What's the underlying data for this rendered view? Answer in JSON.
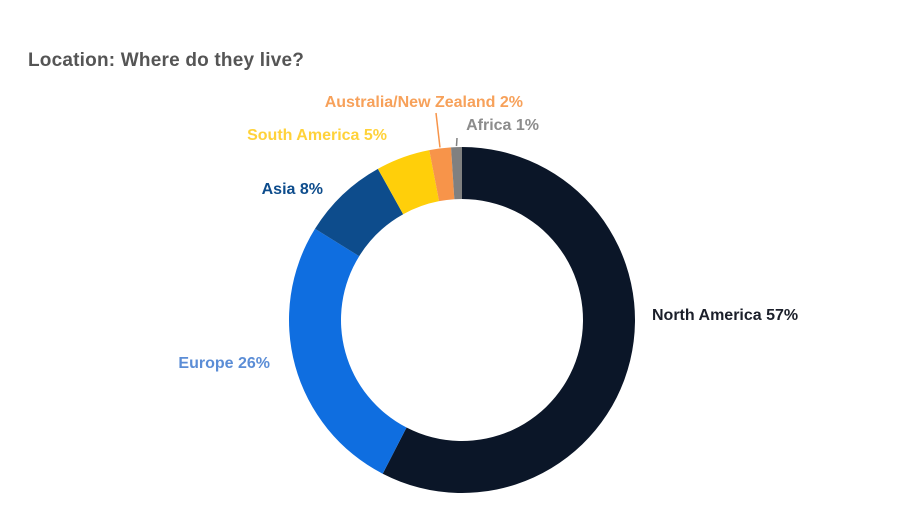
{
  "title": "Location: Where do they live?",
  "chart_data": {
    "type": "pie",
    "donut": true,
    "title": "Location: Where do they live?",
    "categories": [
      "North America",
      "Europe",
      "Asia",
      "South America",
      "Australia/New Zealand",
      "Africa"
    ],
    "values": [
      57,
      26,
      8,
      5,
      2,
      1
    ],
    "labels": [
      "North America 57%",
      "Europe 26%",
      "Asia 8%",
      "South America 5%",
      "Australia/New Zealand 2%",
      "Africa 1%"
    ],
    "colors": [
      "#0b1628",
      "#0f6ee0",
      "#0d4c8c",
      "#ffcf0a",
      "#f7944a",
      "#808080"
    ],
    "label_colors": [
      "#1b1f2a",
      "#5b8dd6",
      "#0d4c8c",
      "#ffd23a",
      "#f7a15a",
      "#8c8c8c"
    ]
  }
}
